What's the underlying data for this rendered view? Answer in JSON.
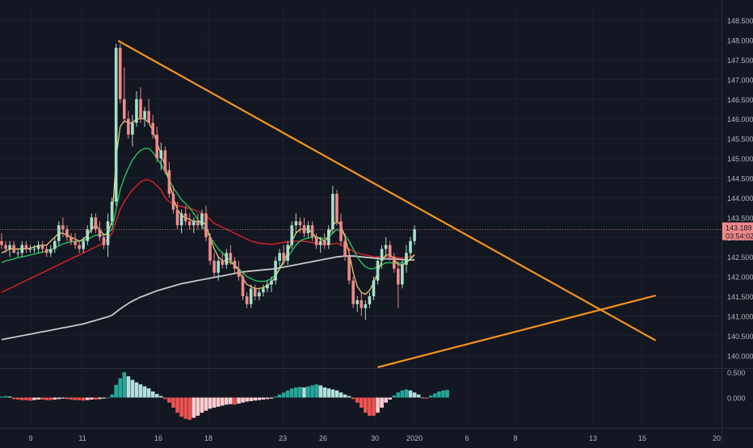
{
  "colors": {
    "background": "#131722",
    "grid": "#1e2230",
    "axis_text": "#b2b5be",
    "candle_up": "#a5e0c8",
    "candle_down": "#f08a8a",
    "wick": "#9aa0ab",
    "ma_fast": "#f5d76e",
    "ma_mid": "#22c55e",
    "ma_slow": "#d41f2b",
    "ma_long": "#c9c9c9",
    "trendline": "#f7941d",
    "price_tag_bg": "#f08a8a",
    "price_tag_text": "#131722",
    "hist_up_strong": "#26a69a",
    "hist_up_weak": "#b2dfdb",
    "hist_down_strong": "#ef5350",
    "hist_down_weak": "#ffcdd2"
  },
  "chart_data": [
    {
      "type": "candlestick",
      "title": "",
      "y_ticks": [
        "140.000",
        "140.500",
        "141.000",
        "141.500",
        "142.000",
        "142.500",
        "143.000",
        "143.500",
        "144.000",
        "144.500",
        "145.000",
        "145.500",
        "146.000",
        "146.500",
        "147.000",
        "147.500",
        "148.000",
        "148.500"
      ],
      "x_ticks": [
        "9",
        "11",
        "16",
        "18",
        "23",
        "26",
        "30",
        "2020",
        "6",
        "8",
        "13",
        "15",
        "20"
      ],
      "ylim": [
        139.7,
        148.85
      ],
      "current_price": "143.189",
      "countdown": "03:54:02",
      "candles": [
        [
          142.9,
          143.1,
          142.7,
          142.8
        ],
        [
          142.8,
          142.9,
          142.6,
          142.7
        ],
        [
          142.7,
          142.9,
          142.5,
          142.8
        ],
        [
          142.8,
          142.9,
          142.6,
          142.6
        ],
        [
          142.6,
          142.7,
          142.5,
          142.6
        ],
        [
          142.6,
          142.9,
          142.5,
          142.8
        ],
        [
          142.8,
          142.9,
          142.6,
          142.7
        ],
        [
          142.7,
          142.8,
          142.6,
          142.7
        ],
        [
          142.7,
          142.8,
          142.6,
          142.7
        ],
        [
          142.7,
          142.9,
          142.6,
          142.8
        ],
        [
          142.8,
          142.9,
          142.6,
          142.7
        ],
        [
          142.7,
          142.8,
          142.5,
          142.6
        ],
        [
          142.6,
          142.8,
          142.5,
          142.7
        ],
        [
          142.7,
          143.0,
          142.6,
          142.9
        ],
        [
          142.9,
          143.4,
          142.8,
          143.3
        ],
        [
          143.3,
          143.5,
          143.0,
          143.2
        ],
        [
          143.2,
          143.3,
          142.9,
          143.0
        ],
        [
          143.0,
          143.1,
          142.8,
          142.9
        ],
        [
          142.9,
          143.1,
          142.7,
          142.8
        ],
        [
          142.8,
          142.9,
          142.6,
          142.7
        ],
        [
          142.7,
          143.0,
          142.6,
          142.9
        ],
        [
          142.9,
          143.3,
          142.8,
          143.2
        ],
        [
          143.2,
          143.6,
          143.1,
          143.5
        ],
        [
          143.5,
          143.6,
          143.1,
          143.2
        ],
        [
          143.2,
          143.4,
          142.9,
          143.0
        ],
        [
          143.0,
          143.1,
          142.7,
          142.8
        ],
        [
          142.8,
          143.6,
          142.5,
          143.4
        ],
        [
          143.4,
          144.0,
          143.3,
          143.9
        ],
        [
          143.9,
          147.9,
          143.8,
          147.8
        ],
        [
          147.8,
          147.9,
          146.4,
          146.5
        ],
        [
          146.5,
          147.3,
          145.9,
          146.0
        ],
        [
          146.0,
          146.2,
          145.5,
          145.6
        ],
        [
          145.6,
          146.1,
          145.3,
          145.9
        ],
        [
          145.9,
          146.7,
          145.8,
          146.5
        ],
        [
          146.5,
          146.8,
          145.9,
          146.0
        ],
        [
          146.0,
          146.3,
          145.8,
          146.2
        ],
        [
          146.2,
          146.5,
          145.9,
          145.9
        ],
        [
          145.9,
          146.1,
          145.5,
          145.6
        ],
        [
          145.6,
          145.8,
          144.9,
          145.0
        ],
        [
          145.0,
          145.4,
          144.7,
          145.2
        ],
        [
          145.2,
          145.3,
          144.6,
          144.7
        ],
        [
          144.7,
          144.9,
          144.0,
          144.1
        ],
        [
          144.1,
          144.3,
          143.6,
          143.7
        ],
        [
          143.7,
          143.9,
          143.2,
          143.3
        ],
        [
          143.3,
          143.7,
          143.1,
          143.6
        ],
        [
          143.6,
          143.8,
          143.3,
          143.4
        ],
        [
          143.4,
          143.6,
          143.2,
          143.3
        ],
        [
          143.3,
          143.5,
          143.1,
          143.4
        ],
        [
          143.4,
          143.6,
          143.2,
          143.3
        ],
        [
          143.3,
          143.7,
          143.2,
          143.6
        ],
        [
          143.6,
          143.8,
          142.9,
          143.0
        ],
        [
          143.0,
          143.1,
          142.3,
          142.4
        ],
        [
          142.4,
          142.6,
          142.0,
          142.1
        ],
        [
          142.1,
          142.5,
          141.9,
          142.4
        ],
        [
          142.4,
          142.6,
          142.2,
          142.3
        ],
        [
          142.3,
          142.7,
          142.2,
          142.6
        ],
        [
          142.6,
          142.8,
          142.3,
          142.4
        ],
        [
          142.4,
          142.5,
          142.1,
          142.2
        ],
        [
          142.2,
          142.4,
          141.9,
          142.0
        ],
        [
          142.0,
          142.1,
          141.4,
          141.5
        ],
        [
          141.5,
          141.6,
          141.2,
          141.3
        ],
        [
          141.3,
          141.8,
          141.2,
          141.7
        ],
        [
          141.7,
          141.8,
          141.4,
          141.5
        ],
        [
          141.5,
          141.7,
          141.4,
          141.6
        ],
        [
          141.6,
          141.8,
          141.5,
          141.7
        ],
        [
          141.7,
          141.9,
          141.6,
          141.8
        ],
        [
          141.8,
          142.0,
          141.6,
          141.9
        ],
        [
          141.9,
          142.5,
          141.8,
          142.4
        ],
        [
          142.4,
          142.7,
          142.2,
          142.6
        ],
        [
          142.6,
          142.8,
          142.3,
          142.4
        ],
        [
          142.4,
          142.9,
          142.3,
          142.8
        ],
        [
          142.8,
          143.4,
          142.7,
          143.3
        ],
        [
          143.3,
          143.6,
          143.1,
          143.4
        ],
        [
          143.4,
          143.5,
          143.1,
          143.3
        ],
        [
          143.3,
          143.5,
          143.0,
          143.1
        ],
        [
          143.1,
          143.4,
          143.0,
          143.3
        ],
        [
          143.3,
          143.4,
          142.9,
          143.0
        ],
        [
          143.0,
          143.1,
          142.7,
          142.8
        ],
        [
          142.8,
          143.0,
          142.6,
          142.9
        ],
        [
          142.9,
          143.1,
          142.7,
          142.8
        ],
        [
          142.8,
          143.3,
          142.7,
          143.2
        ],
        [
          143.2,
          144.3,
          143.1,
          144.1
        ],
        [
          144.1,
          144.2,
          143.3,
          143.4
        ],
        [
          143.4,
          143.6,
          142.8,
          142.9
        ],
        [
          142.9,
          143.1,
          142.4,
          142.5
        ],
        [
          142.5,
          142.7,
          141.8,
          141.9
        ],
        [
          141.9,
          142.0,
          141.2,
          141.3
        ],
        [
          141.3,
          141.5,
          141.1,
          141.4
        ],
        [
          141.4,
          141.6,
          141.0,
          141.2
        ],
        [
          141.2,
          141.4,
          140.9,
          141.3
        ],
        [
          141.3,
          141.6,
          141.2,
          141.5
        ],
        [
          141.5,
          142.0,
          141.4,
          141.9
        ],
        [
          141.9,
          142.5,
          141.8,
          142.4
        ],
        [
          142.4,
          142.8,
          142.2,
          142.7
        ],
        [
          142.7,
          143.0,
          142.5,
          142.8
        ],
        [
          142.8,
          142.9,
          142.4,
          142.5
        ],
        [
          142.5,
          142.6,
          142.1,
          142.2
        ],
        [
          142.2,
          142.4,
          141.2,
          141.8
        ],
        [
          141.8,
          142.4,
          141.7,
          142.3
        ],
        [
          142.3,
          142.8,
          142.1,
          142.6
        ],
        [
          142.6,
          143.0,
          142.4,
          142.9
        ],
        [
          142.9,
          143.3,
          142.8,
          143.2
        ]
      ],
      "ma_fast": [
        142.6,
        142.65,
        142.7,
        142.7,
        142.7,
        142.7,
        142.7,
        142.72,
        142.75,
        142.78,
        142.8,
        142.8,
        142.9,
        143.0,
        143.1,
        143.1,
        143.05,
        143.0,
        142.95,
        142.9,
        142.95,
        143.05,
        143.2,
        143.3,
        143.2,
        143.05,
        143.1,
        143.4,
        145.0,
        145.8,
        145.95,
        145.9,
        145.9,
        146.0,
        146.0,
        146.0,
        145.9,
        145.7,
        145.4,
        145.1,
        144.8,
        144.4,
        144.0,
        143.7,
        143.55,
        143.5,
        143.45,
        143.4,
        143.4,
        143.4,
        143.3,
        143.0,
        142.7,
        142.5,
        142.4,
        142.4,
        142.35,
        142.3,
        142.15,
        141.95,
        141.8,
        141.75,
        141.7,
        141.7,
        141.72,
        141.78,
        141.85,
        142.0,
        142.2,
        142.4,
        142.6,
        142.9,
        143.1,
        143.2,
        143.2,
        143.2,
        143.1,
        143.0,
        142.95,
        142.9,
        143.0,
        143.3,
        143.4,
        143.3,
        143.0,
        142.6,
        142.1,
        141.75,
        141.6,
        141.55,
        141.65,
        141.85,
        142.1,
        142.4,
        142.55,
        142.55,
        142.45,
        142.3,
        142.3,
        142.35,
        142.45,
        142.55
      ],
      "ma_mid": [
        142.35,
        142.4,
        142.42,
        142.45,
        142.48,
        142.5,
        142.52,
        142.55,
        142.57,
        142.6,
        142.62,
        142.65,
        142.68,
        142.72,
        142.78,
        142.83,
        142.86,
        142.88,
        142.89,
        142.9,
        142.92,
        142.95,
        143.0,
        143.05,
        143.05,
        143.05,
        143.1,
        143.2,
        143.7,
        144.2,
        144.5,
        144.75,
        144.95,
        145.1,
        145.2,
        145.25,
        145.25,
        145.15,
        145.0,
        144.85,
        144.65,
        144.45,
        144.25,
        144.1,
        143.95,
        143.85,
        143.75,
        143.6,
        143.45,
        143.3,
        143.15,
        143.0,
        142.85,
        142.7,
        142.6,
        142.5,
        142.4,
        142.3,
        142.2,
        142.1,
        142.0,
        141.95,
        141.9,
        141.88,
        141.88,
        141.9,
        141.95,
        142.05,
        142.2,
        142.35,
        142.5,
        142.65,
        142.8,
        142.9,
        142.95,
        142.98,
        143.0,
        143.0,
        142.98,
        142.97,
        143.0,
        143.1,
        143.2,
        143.15,
        143.05,
        142.9,
        142.7,
        142.5,
        142.35,
        142.25,
        142.2,
        142.2,
        142.25,
        142.3,
        142.35,
        142.35,
        142.35,
        142.33,
        142.35,
        142.38,
        142.45,
        142.55
      ],
      "ma_slow": [
        141.6,
        141.65,
        141.7,
        141.75,
        141.8,
        141.85,
        141.9,
        141.95,
        142.0,
        142.05,
        142.1,
        142.15,
        142.2,
        142.25,
        142.3,
        142.35,
        142.4,
        142.45,
        142.5,
        142.55,
        142.6,
        142.65,
        142.7,
        142.75,
        142.8,
        142.85,
        142.95,
        143.1,
        143.4,
        143.7,
        143.9,
        144.05,
        144.2,
        144.3,
        144.4,
        144.45,
        144.45,
        144.4,
        144.3,
        144.2,
        144.0,
        143.9,
        143.85,
        143.8,
        143.78,
        143.75,
        143.72,
        143.7,
        143.65,
        143.6,
        143.55,
        143.45,
        143.35,
        143.3,
        143.25,
        143.2,
        143.15,
        143.1,
        143.05,
        143.0,
        142.95,
        142.9,
        142.87,
        142.85,
        142.84,
        142.83,
        142.82,
        142.83,
        142.85,
        142.87,
        142.88,
        142.9,
        142.9,
        142.9,
        142.9,
        142.88,
        142.86,
        142.84,
        142.82,
        142.82,
        142.82,
        142.83,
        142.85,
        142.8,
        142.75,
        142.7,
        142.65,
        142.6,
        142.57,
        142.55,
        142.53,
        142.5,
        142.5,
        142.5,
        142.5,
        142.5,
        142.5,
        142.48,
        142.47,
        142.48,
        142.5,
        142.55
      ],
      "ma_long": [
        140.4,
        140.42,
        140.44,
        140.46,
        140.48,
        140.5,
        140.52,
        140.54,
        140.56,
        140.58,
        140.6,
        140.62,
        140.64,
        140.66,
        140.68,
        140.7,
        140.72,
        140.74,
        140.76,
        140.78,
        140.8,
        140.83,
        140.86,
        140.89,
        140.92,
        140.95,
        140.98,
        141.02,
        141.1,
        141.18,
        141.25,
        141.32,
        141.38,
        141.43,
        141.48,
        141.52,
        141.56,
        141.6,
        141.64,
        141.67,
        141.7,
        141.73,
        141.76,
        141.79,
        141.82,
        141.84,
        141.86,
        141.88,
        141.9,
        141.92,
        141.94,
        141.96,
        141.98,
        142.0,
        142.02,
        142.04,
        142.06,
        142.08,
        142.1,
        142.12,
        142.13,
        142.14,
        142.15,
        142.16,
        142.17,
        142.18,
        142.19,
        142.2,
        142.22,
        142.24,
        142.26,
        142.28,
        142.3,
        142.32,
        142.34,
        142.36,
        142.38,
        142.4,
        142.42,
        142.44,
        142.46,
        142.48,
        142.5,
        142.51,
        142.52,
        142.52,
        142.52,
        142.51,
        142.5,
        142.49,
        142.48,
        142.47,
        142.46,
        142.45,
        142.45,
        142.45,
        142.45,
        142.44,
        142.43,
        142.42,
        142.42,
        142.43
      ],
      "trendlines": [
        {
          "from": {
            "i": 28.5,
            "price": 147.98
          },
          "to": {
            "i": 160,
            "price": 140.38
          }
        },
        {
          "from": {
            "i": 92,
            "price": 139.7
          },
          "to": {
            "i": 160,
            "price": 141.52
          }
        }
      ]
    },
    {
      "type": "bar",
      "title": "",
      "y_ticks": [
        "0.500",
        "0.000"
      ],
      "ylim": [
        -0.55,
        0.55
      ],
      "values": [
        0.02,
        0.03,
        0.02,
        -0.03,
        -0.04,
        -0.05,
        -0.05,
        -0.06,
        -0.05,
        -0.04,
        -0.04,
        -0.05,
        -0.05,
        -0.04,
        -0.03,
        -0.02,
        -0.03,
        -0.04,
        -0.05,
        -0.05,
        -0.06,
        -0.05,
        -0.04,
        -0.04,
        -0.03,
        -0.02,
        0.0,
        0.06,
        0.25,
        0.38,
        0.5,
        0.42,
        0.35,
        0.3,
        0.26,
        0.22,
        0.18,
        0.12,
        0.07,
        0.03,
        -0.03,
        -0.1,
        -0.2,
        -0.3,
        -0.38,
        -0.42,
        -0.44,
        -0.4,
        -0.36,
        -0.3,
        -0.26,
        -0.22,
        -0.2,
        -0.18,
        -0.16,
        -0.14,
        -0.13,
        -0.14,
        -0.12,
        -0.1,
        -0.08,
        -0.07,
        -0.06,
        -0.05,
        -0.04,
        -0.03,
        -0.02,
        0.02,
        0.06,
        0.1,
        0.14,
        0.18,
        0.2,
        0.21,
        0.2,
        0.22,
        0.24,
        0.26,
        0.24,
        0.2,
        0.18,
        0.16,
        0.14,
        0.1,
        0.06,
        0.03,
        -0.03,
        -0.1,
        -0.2,
        -0.3,
        -0.36,
        -0.36,
        -0.3,
        -0.2,
        -0.1,
        -0.04,
        0.04,
        0.1,
        0.14,
        0.16,
        0.14,
        0.1,
        0.06,
        0.0,
        -0.02,
        0.04,
        0.08,
        0.12,
        0.14,
        0.15
      ]
    }
  ]
}
